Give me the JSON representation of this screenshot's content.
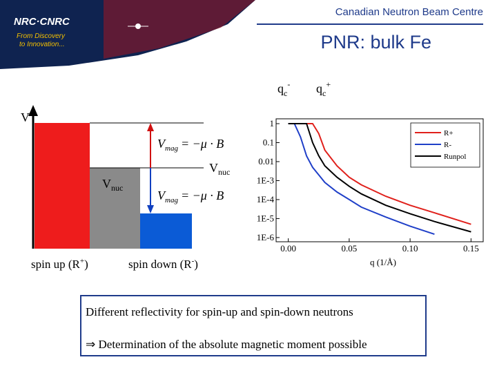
{
  "header": {
    "logo": "NRC·CNRC",
    "tagline_1": "From Discovery",
    "tagline_2": "to Innovation...",
    "centre": "Canadian Neutron Beam Centre",
    "title": "PNR: bulk Fe"
  },
  "qc_minus": {
    "symbol": "q",
    "sub": "c",
    "sup": "-"
  },
  "qc_plus": {
    "symbol": "q",
    "sub": "c",
    "sup": "+"
  },
  "diagram": {
    "v_axis": "V",
    "vmag_top": {
      "symbol": "V",
      "sub": "mag",
      "rhs": "= −μ · B"
    },
    "vmag_bottom": {
      "symbol": "V",
      "sub": "mag",
      "rhs": "= −μ · B"
    },
    "vnuc_left": {
      "symbol": "V",
      "sub": "nuc"
    },
    "vnuc_right": {
      "symbol": "V",
      "sub": "nuc"
    },
    "spin_up": {
      "text": "spin up (R",
      "sup": "+",
      "end": ")"
    },
    "spin_down": {
      "text": "spin down (R",
      "sup": "-",
      "end": ")"
    }
  },
  "chart_data": {
    "type": "line",
    "x_label": "q (1/Å)",
    "log_y": true,
    "legend": "upper right",
    "x": [
      0,
      0.005,
      0.01,
      0.015,
      0.02,
      0.025,
      0.03,
      0.04,
      0.05,
      0.06,
      0.08,
      0.1,
      0.12,
      0.15
    ],
    "series": [
      {
        "name": "R+",
        "color": "#e0201b",
        "values": [
          1,
          1,
          1,
          1,
          1,
          0.3,
          0.04,
          0.006,
          0.0015,
          0.0006,
          0.00015,
          5e-05,
          2e-05,
          5e-06
        ]
      },
      {
        "name": "R-",
        "color": "#1f3fc8",
        "values": [
          1,
          1,
          0.2,
          0.02,
          0.005,
          0.002,
          0.0008,
          0.00025,
          0.0001,
          4e-05,
          1.2e-05,
          4e-06,
          1.5e-06,
          null
        ]
      },
      {
        "name": "Runpol",
        "color": "#000000",
        "values": [
          1,
          1,
          1,
          1,
          0.1,
          0.02,
          0.006,
          0.0015,
          0.0005,
          0.0002,
          5e-05,
          1.8e-05,
          7e-06,
          2e-06
        ]
      }
    ],
    "xlim": [
      -0.01,
      0.16
    ],
    "ylim": [
      6e-07,
      1.8
    ],
    "xticks": [
      {
        "value": 0,
        "label": "0.00"
      },
      0.05,
      {
        "value": 0.1,
        "label": "0.10"
      },
      0.15
    ],
    "yticks": [
      1,
      0.1,
      0.01,
      {
        "value": 0.001,
        "label": "1E-3"
      },
      {
        "value": 0.0001,
        "label": "1E-4"
      },
      {
        "value": 1e-05,
        "label": "1E-5"
      },
      {
        "value": 1e-06,
        "label": "1E-6"
      }
    ]
  },
  "note": {
    "line_1": "Different reflectivity for spin-up and spin-down neutrons",
    "line_2": "⇒ Determination of the absolute magnetic moment possible"
  }
}
